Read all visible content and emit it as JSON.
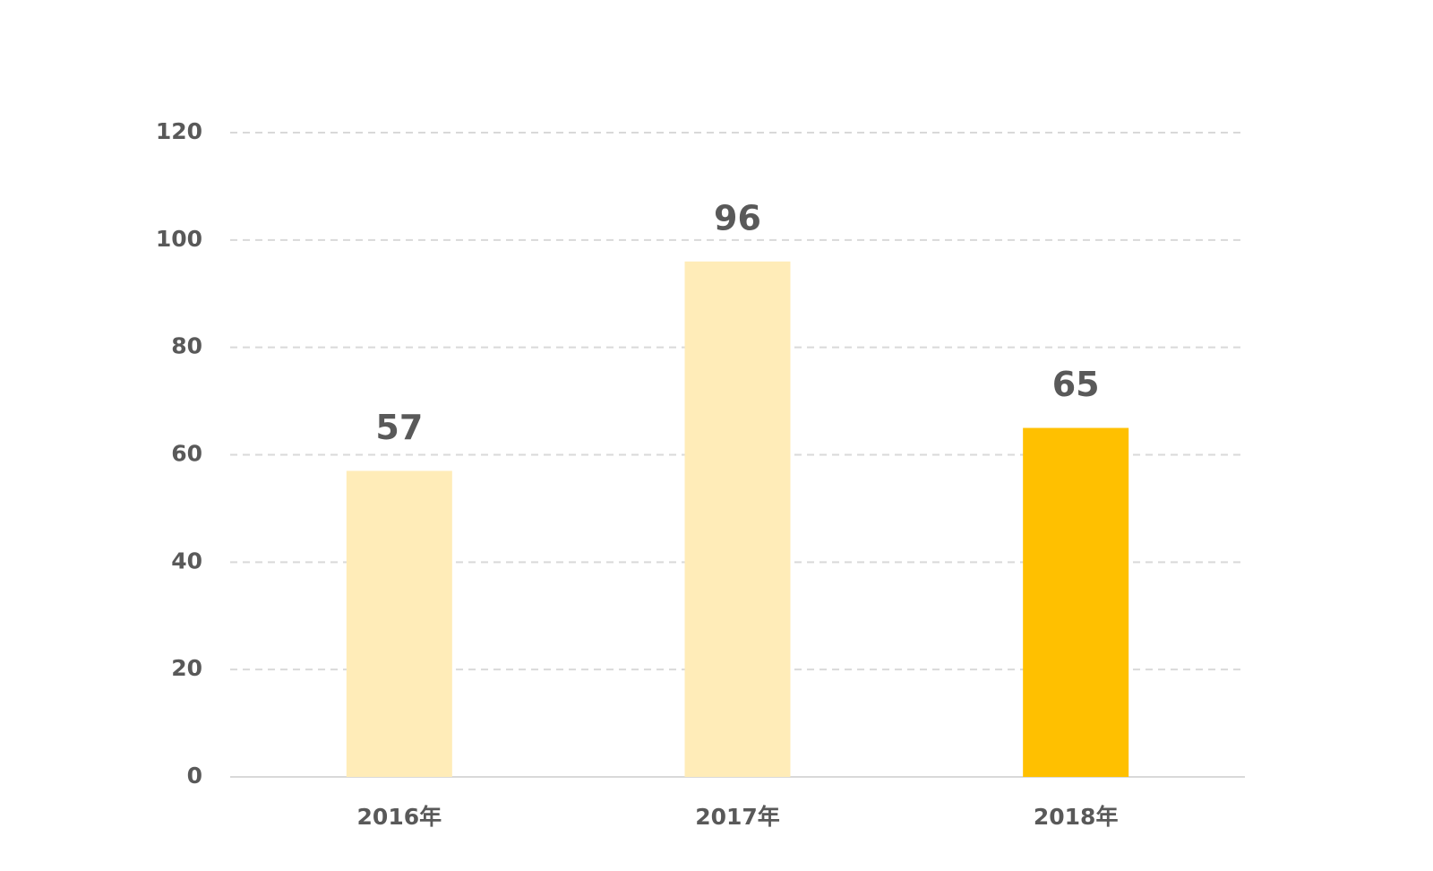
{
  "chart_data": {
    "type": "bar",
    "categories": [
      "2016年",
      "2017年",
      "2018年"
    ],
    "values": [
      57,
      96,
      65
    ],
    "colors": [
      "#ffecb8",
      "#ffecb8",
      "#ffc000"
    ],
    "ylim": [
      0,
      120
    ],
    "yticks": [
      0,
      20,
      40,
      60,
      80,
      100,
      120
    ],
    "grid": true
  }
}
